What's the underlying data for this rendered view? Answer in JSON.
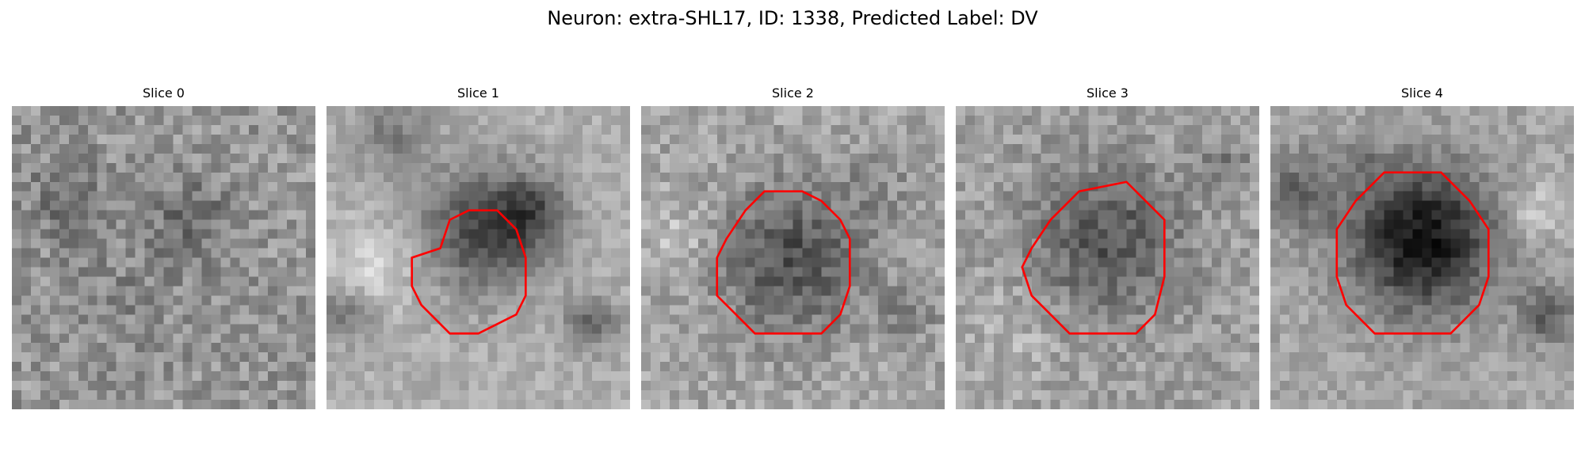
{
  "figure": {
    "title": "Neuron: extra-SHL17, ID: 1338, Predicted Label: DV"
  },
  "slices": [
    {
      "title": "Slice 0",
      "has_contour": false
    },
    {
      "title": "Slice 1",
      "has_contour": true
    },
    {
      "title": "Slice 2",
      "has_contour": true
    },
    {
      "title": "Slice 3",
      "has_contour": true
    },
    {
      "title": "Slice 4",
      "has_contour": true
    }
  ],
  "colors": {
    "contour": "#ff0000",
    "background": "#ffffff"
  },
  "colormap": "gray"
}
